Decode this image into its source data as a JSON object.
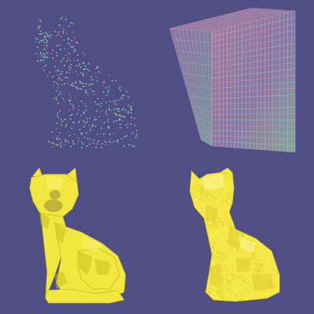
{
  "scene": {
    "background_color": "#4f4f86",
    "panels": [
      {
        "id": "point-cloud",
        "icon": "cat-point-cloud-icon",
        "colors": [
          "#6fd0c8",
          "#c86fb0",
          "#9ad27a"
        ]
      },
      {
        "id": "voxel-grid",
        "icon": "voxel-grid-icon",
        "colors": [
          "#e6a0b4",
          "#a6e0a0",
          "#c8c8e6"
        ]
      },
      {
        "id": "coarse-mesh",
        "icon": "cat-coarse-mesh-icon",
        "colors": [
          "#f2e640",
          "#c8bf20",
          "#fff27a"
        ]
      },
      {
        "id": "fine-mesh",
        "icon": "cat-fine-mesh-icon",
        "colors": [
          "#f7e84a",
          "#d6c828",
          "#fff5a0"
        ]
      }
    ]
  }
}
